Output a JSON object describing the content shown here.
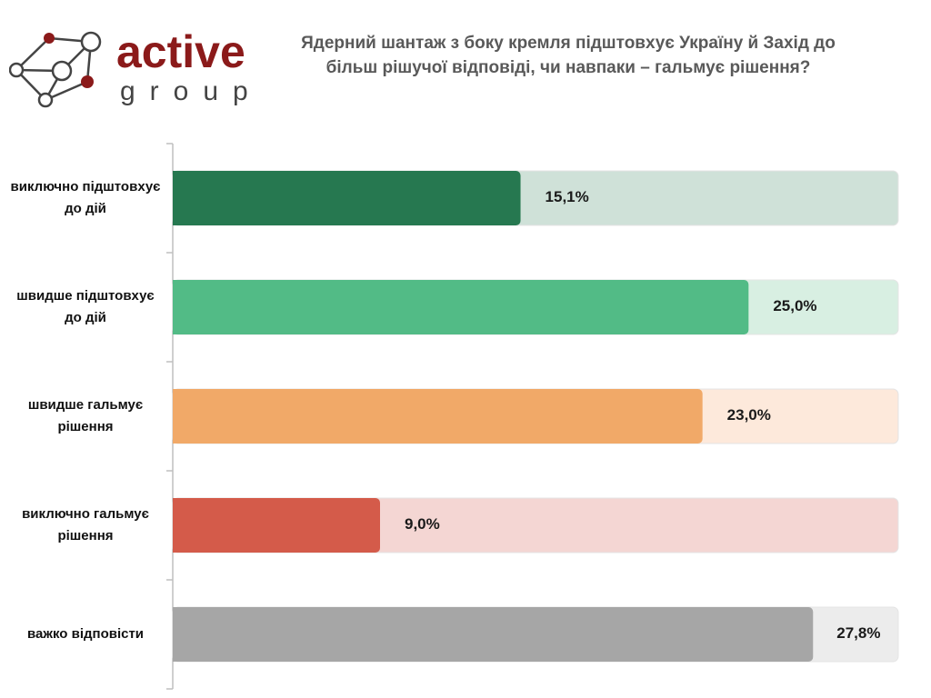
{
  "logo": {
    "word1": "active",
    "word2": "group",
    "brand_color": "#8b1a1a"
  },
  "chart_data": {
    "type": "bar",
    "orientation": "horizontal",
    "title": "Ядерний шантаж з боку кремля підштовхує Україну й Захід до більш рішучої відповіді, чи навпаки – гальмує рішення?",
    "categories": [
      "виключно підштовхує до дій",
      "швидше підштовхує до дій",
      "швидше гальмує рішення",
      "виключно гальмує рішення",
      "важко відповісти"
    ],
    "values": [
      15.1,
      25.0,
      23.0,
      9.0,
      27.8
    ],
    "labels": [
      "15,1%",
      "25,0%",
      "23,0%",
      "9,0%",
      "27,8%"
    ],
    "colors": [
      "#267850",
      "#52bb86",
      "#f1a968",
      "#d45b4a",
      "#a6a6a6"
    ],
    "track_colors": [
      "#cfe1d8",
      "#d8efe2",
      "#fde9db",
      "#f4d6d3",
      "#ececec"
    ],
    "xlim": [
      0,
      31.5
    ],
    "grid": false,
    "legend": "none"
  }
}
